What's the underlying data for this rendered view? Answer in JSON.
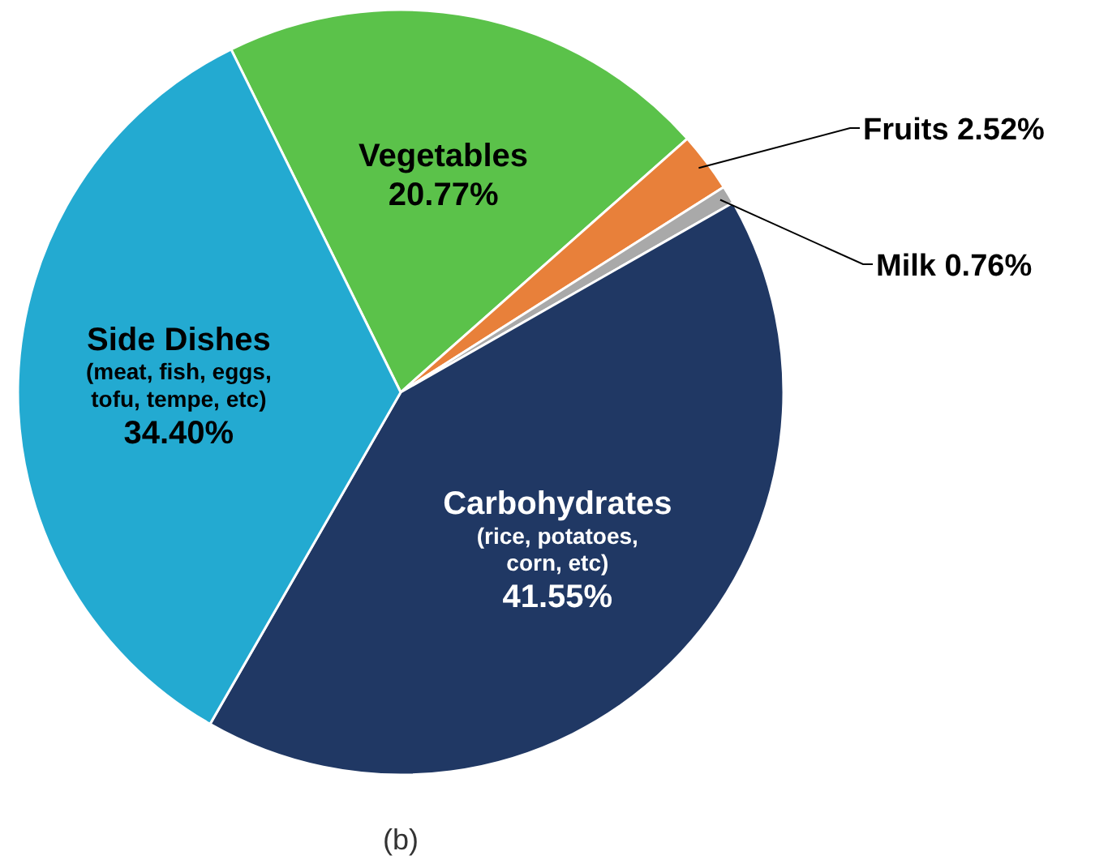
{
  "chart_data": {
    "type": "pie",
    "categories": [
      "Vegetables",
      "Fruits",
      "Milk",
      "Carbohydrates\n(rice, potatoes,\ncorn, etc)",
      "Side Dishes\n(meat, fish, eggs,\ntofu, tempe, etc)"
    ],
    "values": [
      20.77,
      2.52,
      0.76,
      41.55,
      34.4
    ],
    "value_labels": [
      "20.77%",
      "2.52%",
      "0.76%",
      "41.55%",
      "34.40%"
    ],
    "colors": [
      "#5bc24a",
      "#e8803a",
      "#a9a9a9",
      "#203864",
      "#23aad1"
    ],
    "annotations": [
      "(b)"
    ]
  }
}
